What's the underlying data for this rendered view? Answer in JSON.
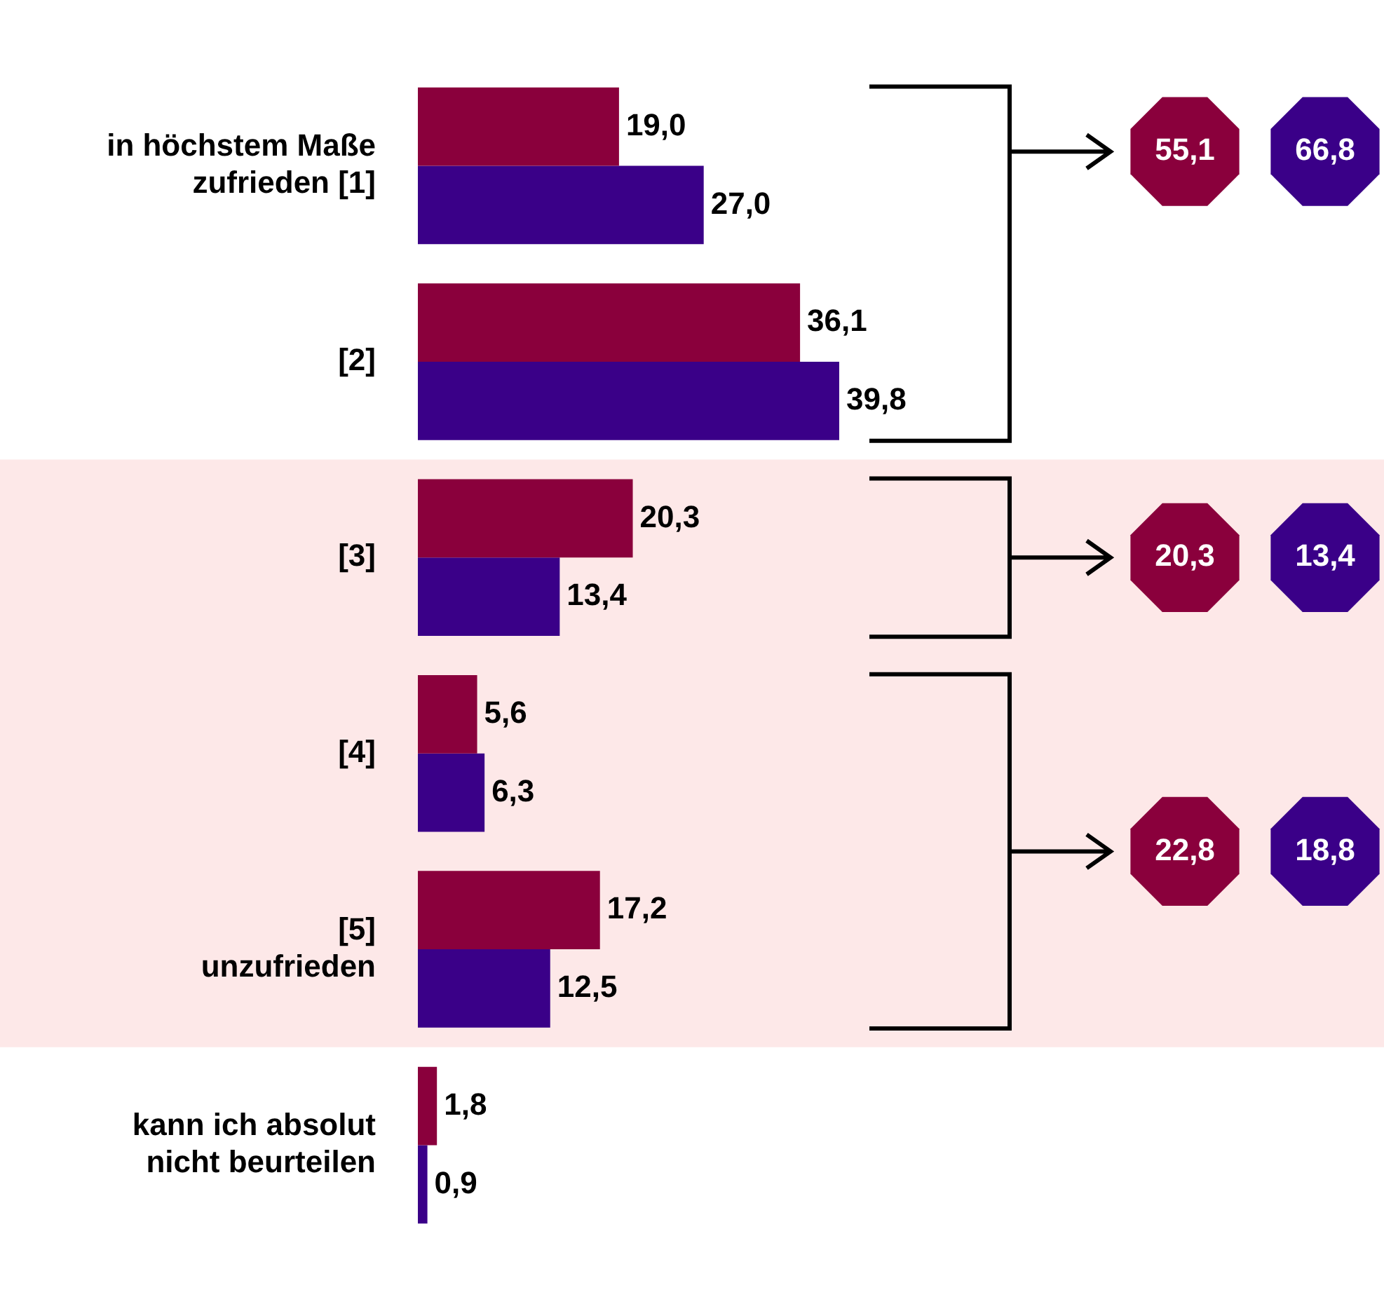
{
  "chart_data": {
    "type": "bar",
    "orientation": "horizontal",
    "categories": [
      "in höchstem Maße\nzufrieden [1]",
      "[2]",
      "[3]",
      "[4]",
      "[5]\nunzufrieden",
      "kann ich absolut\nnicht beurteilen"
    ],
    "series": [
      {
        "color": "#8a003c",
        "values": [
          19.0,
          36.1,
          20.3,
          5.6,
          17.2,
          1.8
        ],
        "value_labels": [
          "19,0",
          "36,1",
          "20,3",
          "5,6",
          "17,2",
          "1,8"
        ]
      },
      {
        "color": "#3a0088",
        "values": [
          27.0,
          39.8,
          13.4,
          6.3,
          12.5,
          0.9
        ],
        "value_labels": [
          "27,0",
          "39,8",
          "13,4",
          "6,3",
          "12,5",
          "0,9"
        ]
      }
    ],
    "tick_labels": "y",
    "grid": false,
    "legend": false,
    "bands": [
      {
        "axis": "y",
        "from": "[3]",
        "to": "[5]\nunzufrieden",
        "color": "#fde8e8"
      }
    ],
    "annotations": [
      "55,1",
      "66,8",
      "20,3",
      "13,4",
      "22,8",
      "18,8"
    ]
  }
}
